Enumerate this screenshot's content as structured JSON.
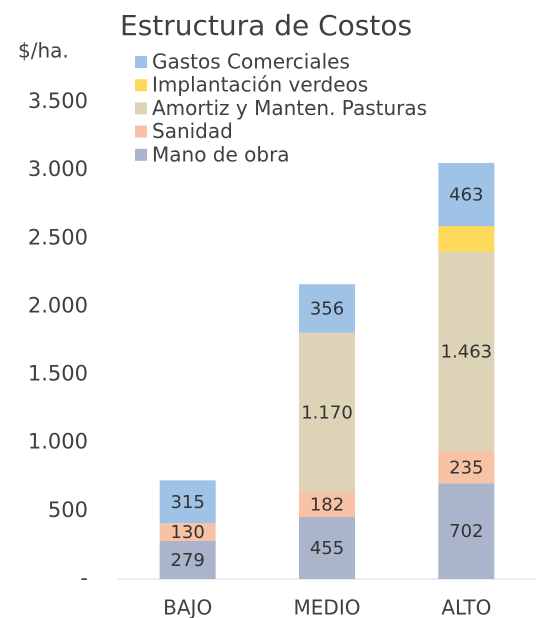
{
  "chart_data": {
    "type": "stacked_bar",
    "title": "Estructura de Costos",
    "ylabel": "$/ha.",
    "categories": [
      "BAJO",
      "MEDIO",
      "ALTO"
    ],
    "series": [
      {
        "name": "Mano de obra",
        "color": "#aab5cc",
        "values": [
          279,
          455,
          702
        ]
      },
      {
        "name": "Sanidad",
        "color": "#f7c3a4",
        "values": [
          130,
          182,
          235
        ]
      },
      {
        "name": "Amortiz y Manten. Pasturas",
        "color": "#ddd3b6",
        "values": [
          null,
          1170,
          1463
        ],
        "value_labels": [
          null,
          "1.170",
          "1.463"
        ]
      },
      {
        "name": "Implantación verdeos",
        "color": "#fdd85a",
        "values": [
          null,
          null,
          190
        ],
        "show_labels": false
      },
      {
        "name": "Gastos Comerciales",
        "color": "#9fc3e6",
        "values": [
          315,
          356,
          463
        ]
      }
    ],
    "ylim": [
      0,
      3500
    ],
    "yticks": [
      {
        "value": 0,
        "label": "-"
      },
      500,
      {
        "value": 1000,
        "label": "1.000"
      },
      {
        "value": 1500,
        "label": "1.500"
      },
      {
        "value": 2000,
        "label": "2.000"
      },
      {
        "value": 2500,
        "label": "2.500"
      },
      {
        "value": 3000,
        "label": "3.000"
      },
      {
        "value": 3500,
        "label": "3.500"
      }
    ],
    "grid": false
  }
}
